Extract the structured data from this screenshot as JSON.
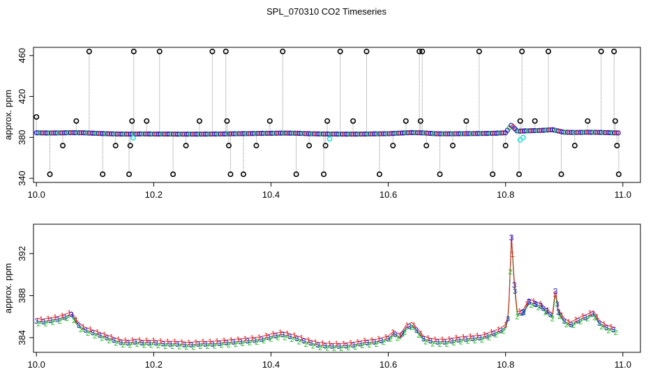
{
  "title": "SPL_070310  CO2 Timeseries",
  "colors": {
    "frame": "#000000",
    "series_blue": "#1f1fd0",
    "series_green": "#22bb22",
    "series_red": "#dd2222",
    "series_cyan": "#22dddd",
    "spike_line": "#8c8c8c",
    "outlier_marker": "#000000"
  },
  "chart_data": [
    {
      "type": "scatter",
      "panel": "top",
      "title": "",
      "xlabel": "",
      "ylabel": "approx. ppm",
      "xlim": [
        9.995,
        11.03
      ],
      "ylim": [
        336,
        468
      ],
      "x_ticks": [
        10.0,
        10.2,
        10.4,
        10.6,
        10.8,
        11.0
      ],
      "x_tick_labels": [
        "10.0",
        "10.2",
        "10.4",
        "10.6",
        "10.8",
        "11.0"
      ],
      "y_ticks": [
        340,
        380,
        420,
        460
      ],
      "y_tick_labels": [
        "340",
        "380",
        "420",
        "460"
      ],
      "grid": false,
      "baseline_series": {
        "x": [
          10.0,
          10.02,
          10.04,
          10.06,
          10.08,
          10.1,
          10.12,
          10.14,
          10.16,
          10.18,
          10.2,
          10.22,
          10.24,
          10.26,
          10.28,
          10.3,
          10.32,
          10.34,
          10.36,
          10.38,
          10.4,
          10.42,
          10.44,
          10.46,
          10.48,
          10.5,
          10.52,
          10.54,
          10.56,
          10.58,
          10.6,
          10.62,
          10.64,
          10.66,
          10.68,
          10.7,
          10.72,
          10.74,
          10.76,
          10.78,
          10.8,
          10.81,
          10.82,
          10.84,
          10.86,
          10.88,
          10.9,
          10.92,
          10.94,
          10.96,
          10.99
        ],
        "y": [
          384.5,
          384.3,
          384.4,
          384.6,
          384.5,
          384.0,
          383.6,
          383.3,
          383.2,
          383.4,
          383.3,
          383.3,
          383.2,
          383.2,
          383.2,
          383.3,
          383.4,
          383.6,
          383.7,
          383.9,
          384.0,
          384.2,
          384.1,
          383.7,
          383.4,
          383.3,
          383.2,
          383.2,
          383.3,
          383.5,
          383.6,
          384.2,
          384.7,
          384.4,
          383.6,
          383.5,
          383.6,
          383.7,
          383.8,
          384.0,
          384.5,
          392.0,
          386.0,
          386.5,
          386.8,
          387.5,
          385.0,
          384.8,
          385.0,
          384.9,
          384.4
        ]
      },
      "cyan_points": {
        "x": [
          10.165,
          10.5,
          10.825,
          10.83
        ],
        "y": [
          379.5,
          378.5,
          377.5,
          380.0
        ]
      },
      "outliers": {
        "x": [
          10.0,
          10.023,
          10.045,
          10.068,
          10.09,
          10.113,
          10.135,
          10.158,
          10.16,
          10.163,
          10.166,
          10.188,
          10.21,
          10.233,
          10.255,
          10.278,
          10.3,
          10.323,
          10.325,
          10.328,
          10.331,
          10.353,
          10.375,
          10.398,
          10.42,
          10.443,
          10.465,
          10.49,
          10.493,
          10.496,
          10.518,
          10.54,
          10.563,
          10.585,
          10.608,
          10.63,
          10.653,
          10.655,
          10.658,
          10.665,
          10.688,
          10.71,
          10.733,
          10.755,
          10.778,
          10.8,
          10.823,
          10.825,
          10.828,
          10.85,
          10.873,
          10.895,
          10.918,
          10.94,
          10.963,
          10.985,
          10.987,
          10.99,
          10.993
        ],
        "y": [
          400,
          344,
          372,
          396,
          464,
          344,
          372,
          344,
          372,
          396,
          464,
          396,
          464,
          344,
          372,
          396,
          464,
          464,
          396,
          372,
          344,
          344,
          372,
          396,
          464,
          344,
          372,
          344,
          372,
          396,
          464,
          396,
          464,
          344,
          372,
          396,
          464,
          396,
          464,
          372,
          344,
          372,
          396,
          464,
          344,
          372,
          344,
          396,
          464,
          396,
          464,
          344,
          372,
          396,
          464,
          464,
          396,
          372,
          344
        ]
      }
    },
    {
      "type": "line",
      "panel": "bottom",
      "title": "",
      "xlabel": "",
      "ylabel": "approx. ppm",
      "xlim": [
        9.995,
        11.03
      ],
      "ylim": [
        382.6,
        394.8
      ],
      "x_ticks": [
        10.0,
        10.2,
        10.4,
        10.6,
        10.8,
        11.0
      ],
      "x_tick_labels": [
        "10.0",
        "10.2",
        "10.4",
        "10.6",
        "10.8",
        "11.0"
      ],
      "y_ticks": [
        384,
        388,
        392
      ],
      "y_tick_labels": [
        "384",
        "388",
        "392"
      ],
      "grid": false,
      "series": [
        {
          "marker": "3",
          "x": [
            10.0,
            10.01,
            10.02,
            10.03,
            10.04,
            10.05,
            10.06,
            10.07,
            10.08,
            10.09,
            10.1,
            10.11,
            10.12,
            10.13,
            10.14,
            10.15,
            10.16,
            10.17,
            10.18,
            10.19,
            10.2,
            10.22,
            10.24,
            10.26,
            10.28,
            10.3,
            10.32,
            10.34,
            10.36,
            10.38,
            10.4,
            10.42,
            10.44,
            10.46,
            10.48,
            10.5,
            10.52,
            10.54,
            10.56,
            10.58,
            10.6,
            10.61,
            10.62,
            10.63,
            10.64,
            10.65,
            10.66,
            10.67,
            10.68,
            10.7,
            10.72,
            10.74,
            10.76,
            10.78,
            10.79,
            10.8,
            10.805,
            10.81,
            10.815,
            10.82,
            10.83,
            10.84,
            10.85,
            10.86,
            10.87,
            10.88,
            10.885,
            10.89,
            10.9,
            10.91,
            10.92,
            10.93,
            10.94,
            10.95,
            10.96,
            10.97,
            10.98,
            10.99
          ],
          "y": [
            385.6,
            385.5,
            385.6,
            385.7,
            385.8,
            386.0,
            386.2,
            385.3,
            384.8,
            384.6,
            384.4,
            384.2,
            384.0,
            383.8,
            383.6,
            383.5,
            383.5,
            383.6,
            383.5,
            383.5,
            383.5,
            383.4,
            383.4,
            383.3,
            383.4,
            383.4,
            383.5,
            383.6,
            383.7,
            383.8,
            384.1,
            384.3,
            384.0,
            383.6,
            383.3,
            383.2,
            383.2,
            383.3,
            383.5,
            383.6,
            383.9,
            384.4,
            384.0,
            384.9,
            385.2,
            384.6,
            383.9,
            383.7,
            383.6,
            383.6,
            383.8,
            383.9,
            384.0,
            384.4,
            384.6,
            385.0,
            386.0,
            393.5,
            389.0,
            386.2,
            386.4,
            387.4,
            387.2,
            387.0,
            386.5,
            386.0,
            388.4,
            386.4,
            385.6,
            385.2,
            385.5,
            385.8,
            386.0,
            386.3,
            385.4,
            385.0,
            384.8,
            384.7
          ]
        }
      ]
    }
  ]
}
